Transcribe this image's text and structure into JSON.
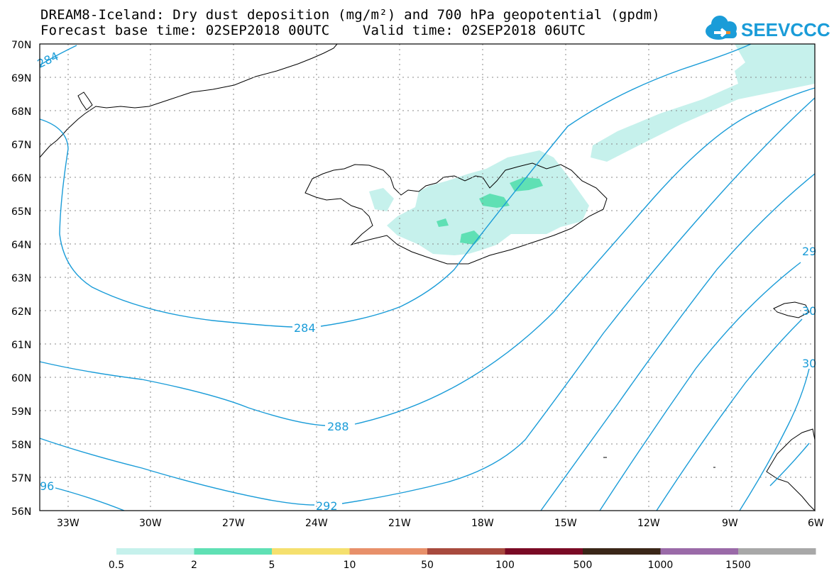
{
  "title": {
    "line1": "DREAM8-Iceland: Dry dust deposition (mg/m²) and 700 hPa geopotential (gpdm)",
    "line2": "Forecast base time: 02SEP2018 00UTC    Valid time: 02SEP2018 06UTC"
  },
  "logo": {
    "text": "SEEVCCC",
    "icon": "cloud-icon"
  },
  "map": {
    "lat_labels": [
      "70N",
      "69N",
      "68N",
      "67N",
      "66N",
      "65N",
      "64N",
      "63N",
      "62N",
      "61N",
      "60N",
      "59N",
      "58N",
      "57N",
      "56N"
    ],
    "lon_labels": [
      "33W",
      "30W",
      "27W",
      "24W",
      "21W",
      "18W",
      "15W",
      "12W",
      "9W",
      "6W"
    ],
    "contour_labels": {
      "c284_top": "284",
      "c284_mid": "284",
      "c288": "288",
      "c292": "292",
      "c296_left": "96",
      "c29_right": "29",
      "c30_a": "30",
      "c30_b": "30"
    },
    "colors": {
      "contour": "#1a9cd8",
      "coast": "#000000",
      "dust_low": "#c6f1ec",
      "dust_mid": "#5fe0b4"
    }
  },
  "legend": {
    "labels": [
      "0.5",
      "2",
      "5",
      "10",
      "50",
      "100",
      "500",
      "1000",
      "1500"
    ],
    "colors": [
      "#c6f1ec",
      "#5fe0b4",
      "#f5e06e",
      "#e8906a",
      "#a84a3e",
      "#7a0a25",
      "#3a2618",
      "#9a6aa8",
      "#a8a8a8"
    ]
  }
}
